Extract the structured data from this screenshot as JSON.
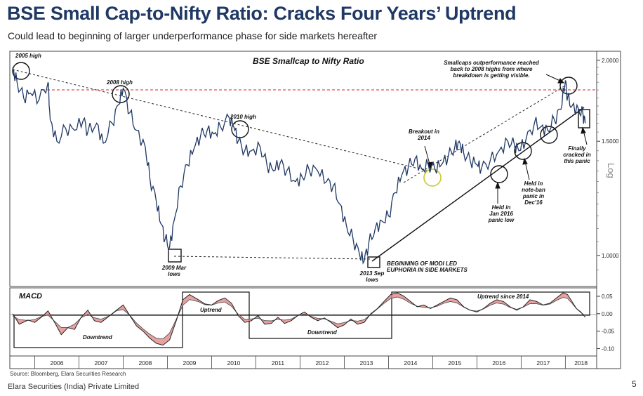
{
  "title": "BSE Small Cap-to-Nifty Ratio: Cracks Four Years’ Uptrend",
  "subtitle": "Could lead to beginning of larger underperformance phase for side markets hereafter",
  "source": "Source: Bloomberg, Elara Securities Research",
  "company": "Elara Securities (India) Private Limited",
  "page_number": "5",
  "colors": {
    "title": "#1f3864",
    "line": "#1f3864",
    "red_dash": "#e02020",
    "macd_fill": "#e08080",
    "circle_highlight": "#c8c832"
  },
  "chart_data": [
    {
      "type": "line",
      "title": "BSE Smallcap to Nifty Ratio",
      "scale": "log",
      "ylabel": "Log",
      "y_ticks": [
        "1.0000",
        "1.5000",
        "2.0000"
      ],
      "ylim": [
        0.9,
        2.05
      ],
      "x_ticks": [
        "2006",
        "2007",
        "2008",
        "2009",
        "2010",
        "2011",
        "2012",
        "2013",
        "2014",
        "2015",
        "2016",
        "2017",
        "2018"
      ],
      "xlim": [
        2005.5,
        2018.55
      ],
      "grid": false,
      "series": [
        {
          "values": [
            [
              2005.5,
              1.95
            ],
            [
              2005.6,
              1.85
            ],
            [
              2005.75,
              1.75
            ],
            [
              2005.9,
              1.78
            ],
            [
              2006.1,
              1.74
            ],
            [
              2006.3,
              1.85
            ],
            [
              2006.35,
              1.62
            ],
            [
              2006.5,
              1.5
            ],
            [
              2006.7,
              1.57
            ],
            [
              2006.9,
              1.56
            ],
            [
              2007.1,
              1.62
            ],
            [
              2007.2,
              1.55
            ],
            [
              2007.4,
              1.6
            ],
            [
              2007.55,
              1.49
            ],
            [
              2007.75,
              1.6
            ],
            [
              2007.9,
              1.71
            ],
            [
              2008.0,
              1.81
            ],
            [
              2008.15,
              1.66
            ],
            [
              2008.3,
              1.56
            ],
            [
              2008.5,
              1.47
            ],
            [
              2008.6,
              1.32
            ],
            [
              2008.75,
              1.21
            ],
            [
              2008.85,
              1.12
            ],
            [
              2008.95,
              1.06
            ],
            [
              2009.05,
              1.03
            ],
            [
              2009.15,
              1.13
            ],
            [
              2009.3,
              1.28
            ],
            [
              2009.45,
              1.38
            ],
            [
              2009.6,
              1.46
            ],
            [
              2009.75,
              1.53
            ],
            [
              2009.9,
              1.56
            ],
            [
              2010.05,
              1.54
            ],
            [
              2010.2,
              1.58
            ],
            [
              2010.4,
              1.63
            ],
            [
              2010.5,
              1.58
            ],
            [
              2010.6,
              1.5
            ],
            [
              2010.75,
              1.45
            ],
            [
              2010.9,
              1.45
            ],
            [
              2011.1,
              1.47
            ],
            [
              2011.25,
              1.38
            ],
            [
              2011.4,
              1.35
            ],
            [
              2011.55,
              1.39
            ],
            [
              2011.7,
              1.35
            ],
            [
              2011.9,
              1.3
            ],
            [
              2012.05,
              1.32
            ],
            [
              2012.2,
              1.36
            ],
            [
              2012.4,
              1.35
            ],
            [
              2012.6,
              1.3
            ],
            [
              2012.75,
              1.28
            ],
            [
              2012.9,
              1.2
            ],
            [
              2013.05,
              1.11
            ],
            [
              2013.2,
              1.06
            ],
            [
              2013.35,
              1.0
            ],
            [
              2013.45,
              0.98
            ],
            [
              2013.55,
              1.04
            ],
            [
              2013.7,
              1.1
            ],
            [
              2013.85,
              1.13
            ],
            [
              2014.0,
              1.15
            ],
            [
              2014.15,
              1.25
            ],
            [
              2014.3,
              1.33
            ],
            [
              2014.45,
              1.37
            ],
            [
              2014.6,
              1.41
            ],
            [
              2014.75,
              1.36
            ],
            [
              2014.9,
              1.38
            ],
            [
              2015.05,
              1.36
            ],
            [
              2015.2,
              1.38
            ],
            [
              2015.35,
              1.42
            ],
            [
              2015.5,
              1.47
            ],
            [
              2015.6,
              1.5
            ],
            [
              2015.7,
              1.44
            ],
            [
              2015.85,
              1.4
            ],
            [
              2016.0,
              1.38
            ],
            [
              2016.1,
              1.36
            ],
            [
              2016.3,
              1.4
            ],
            [
              2016.5,
              1.45
            ],
            [
              2016.7,
              1.5
            ],
            [
              2016.85,
              1.48
            ],
            [
              2016.95,
              1.45
            ],
            [
              2017.1,
              1.5
            ],
            [
              2017.3,
              1.6
            ],
            [
              2017.45,
              1.58
            ],
            [
              2017.6,
              1.56
            ],
            [
              2017.75,
              1.62
            ],
            [
              2017.9,
              1.68
            ],
            [
              2018.0,
              1.86
            ],
            [
              2018.05,
              1.75
            ],
            [
              2018.15,
              1.7
            ],
            [
              2018.3,
              1.68
            ],
            [
              2018.4,
              1.65
            ],
            [
              2018.45,
              1.6
            ]
          ]
        }
      ],
      "annotations": [
        {
          "text": "2005 high"
        },
        {
          "text": "2008 high"
        },
        {
          "text": "2010 high"
        },
        {
          "text": "2009 Mar lows"
        },
        {
          "text": "2013 Sep lows"
        },
        {
          "text": "Breakout in 2014"
        },
        {
          "text": "Smallcaps outperformance reached back to 2008 highs from where breakdown is getting visible."
        },
        {
          "text": "BEGINNING OF MODI LED EUPHORIA IN SIDE MARKETS"
        },
        {
          "text": "Held in Jan 2016 panic low"
        },
        {
          "text": "Held in note-ban panic in Dec'16"
        },
        {
          "text": "Finally cracked in this panic"
        }
      ]
    },
    {
      "type": "area",
      "title": "MACD",
      "y_ticks": [
        "0.05",
        "0.00",
        "-0.05",
        "-0.10"
      ],
      "ylim": [
        -0.115,
        0.07
      ],
      "grid": false,
      "series": [
        {
          "values": [
            [
              2005.5,
              0.0
            ],
            [
              2005.65,
              -0.03
            ],
            [
              2005.85,
              -0.018
            ],
            [
              2006.0,
              -0.025
            ],
            [
              2006.15,
              -0.01
            ],
            [
              2006.3,
              0.008
            ],
            [
              2006.45,
              -0.025
            ],
            [
              2006.6,
              -0.06
            ],
            [
              2006.75,
              -0.04
            ],
            [
              2006.9,
              -0.045
            ],
            [
              2007.05,
              -0.01
            ],
            [
              2007.2,
              0.01
            ],
            [
              2007.35,
              -0.02
            ],
            [
              2007.5,
              -0.025
            ],
            [
              2007.7,
              -0.005
            ],
            [
              2007.85,
              0.01
            ],
            [
              2008.0,
              0.025
            ],
            [
              2008.15,
              -0.005
            ],
            [
              2008.3,
              -0.035
            ],
            [
              2008.45,
              -0.05
            ],
            [
              2008.6,
              -0.07
            ],
            [
              2008.75,
              -0.085
            ],
            [
              2008.9,
              -0.09
            ],
            [
              2009.05,
              -0.075
            ],
            [
              2009.2,
              -0.02
            ],
            [
              2009.35,
              0.04
            ],
            [
              2009.5,
              0.055
            ],
            [
              2009.7,
              0.04
            ],
            [
              2009.85,
              0.028
            ],
            [
              2010.0,
              0.025
            ],
            [
              2010.15,
              0.038
            ],
            [
              2010.3,
              0.045
            ],
            [
              2010.45,
              0.03
            ],
            [
              2010.6,
              -0.005
            ],
            [
              2010.75,
              -0.025
            ],
            [
              2010.9,
              -0.02
            ],
            [
              2011.05,
              -0.005
            ],
            [
              2011.2,
              -0.03
            ],
            [
              2011.35,
              -0.028
            ],
            [
              2011.5,
              -0.01
            ],
            [
              2011.65,
              -0.028
            ],
            [
              2011.8,
              -0.02
            ],
            [
              2011.95,
              -0.005
            ],
            [
              2012.1,
              0.005
            ],
            [
              2012.25,
              -0.01
            ],
            [
              2012.4,
              -0.02
            ],
            [
              2012.55,
              -0.012
            ],
            [
              2012.7,
              -0.025
            ],
            [
              2012.85,
              -0.04
            ],
            [
              2013.0,
              -0.032
            ],
            [
              2013.15,
              -0.015
            ],
            [
              2013.3,
              -0.03
            ],
            [
              2013.45,
              -0.025
            ],
            [
              2013.6,
              0.0
            ],
            [
              2013.75,
              0.015
            ],
            [
              2013.9,
              0.035
            ],
            [
              2014.05,
              0.055
            ],
            [
              2014.2,
              0.06
            ],
            [
              2014.35,
              0.05
            ],
            [
              2014.5,
              0.035
            ],
            [
              2014.65,
              0.02
            ],
            [
              2014.8,
              0.025
            ],
            [
              2014.95,
              0.015
            ],
            [
              2015.1,
              0.025
            ],
            [
              2015.25,
              0.035
            ],
            [
              2015.4,
              0.045
            ],
            [
              2015.55,
              0.04
            ],
            [
              2015.7,
              0.02
            ],
            [
              2015.85,
              0.01
            ],
            [
              2016.0,
              0.005
            ],
            [
              2016.15,
              0.015
            ],
            [
              2016.3,
              0.03
            ],
            [
              2016.45,
              0.04
            ],
            [
              2016.6,
              0.035
            ],
            [
              2016.75,
              0.02
            ],
            [
              2016.9,
              0.01
            ],
            [
              2017.05,
              0.02
            ],
            [
              2017.2,
              0.04
            ],
            [
              2017.35,
              0.035
            ],
            [
              2017.5,
              0.025
            ],
            [
              2017.65,
              0.03
            ],
            [
              2017.8,
              0.045
            ],
            [
              2017.95,
              0.06
            ],
            [
              2018.05,
              0.055
            ],
            [
              2018.15,
              0.035
            ],
            [
              2018.25,
              0.015
            ],
            [
              2018.35,
              0.005
            ],
            [
              2018.45,
              -0.01
            ]
          ]
        }
      ],
      "annotations": [
        {
          "text": "Downtrend"
        },
        {
          "text": "Uptrend"
        },
        {
          "text": "Downtrend"
        },
        {
          "text": "Uptrend since 2014"
        }
      ]
    }
  ]
}
